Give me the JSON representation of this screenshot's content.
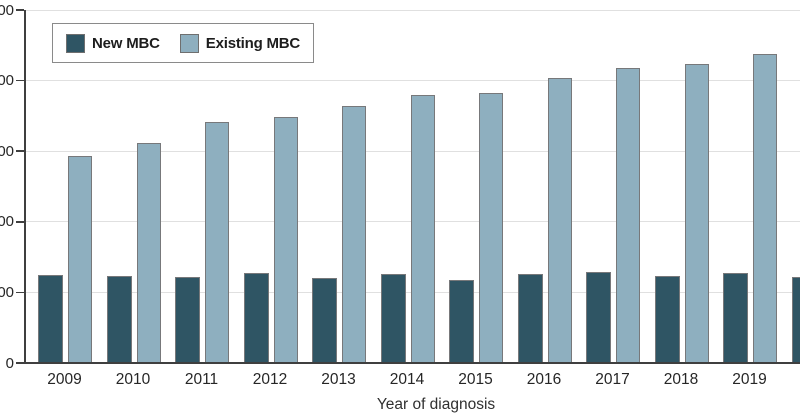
{
  "legend": {
    "items": [
      {
        "label": "New MBC",
        "color": "#2F5564"
      },
      {
        "label": "Existing MBC",
        "color": "#8EAFBF"
      }
    ]
  },
  "x_axis": {
    "title": "Year of diagnosis",
    "tick_labels": [
      "2009",
      "2010",
      "2011",
      "2012",
      "2013",
      "2014",
      "2015",
      "2016",
      "2017",
      "2018",
      "2019"
    ]
  },
  "y_axis": {
    "visible_tick_labels_top_to_bottom": [
      "00",
      "00",
      "00",
      "00",
      "00",
      "0"
    ]
  },
  "chart_data": {
    "type": "bar",
    "title": "",
    "xlabel": "Year of diagnosis",
    "ylabel": "",
    "categories": [
      "2009",
      "2010",
      "2011",
      "2012",
      "2013",
      "2014",
      "2015",
      "2016",
      "2017",
      "2018",
      "2019"
    ],
    "series": [
      {
        "name": "New MBC",
        "color": "#2F5564",
        "values": [
          12500,
          12300,
          12200,
          12700,
          12000,
          12600,
          11800,
          12600,
          12900,
          12300,
          12700
        ]
      },
      {
        "name": "Existing MBC",
        "color": "#8EAFBF",
        "values": [
          29300,
          31200,
          34100,
          34800,
          36400,
          38000,
          38200,
          40400,
          41800,
          42300,
          43800
        ]
      }
    ],
    "partial_next_group_at_right_edge": {
      "series": "New MBC",
      "value": 12200
    },
    "ylim": [
      0,
      50000
    ],
    "y_tick_interval": 10000,
    "y_tick_labels_visible": [
      "00",
      "00",
      "00",
      "00",
      "00",
      "0"
    ],
    "grid": true,
    "legend_position": "top-left",
    "axis_cut_off_left": true
  }
}
